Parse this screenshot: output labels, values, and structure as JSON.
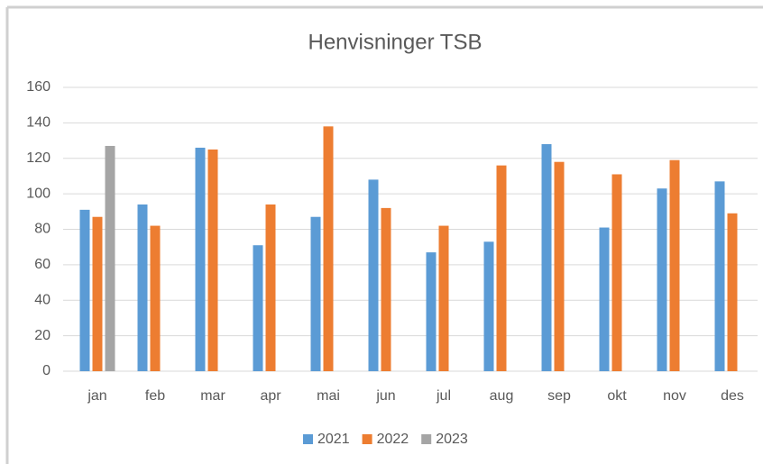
{
  "chart_data": {
    "type": "bar",
    "title": "Henvisninger TSB",
    "categories": [
      "jan",
      "feb",
      "mar",
      "apr",
      "mai",
      "jun",
      "jul",
      "aug",
      "sep",
      "okt",
      "nov",
      "des"
    ],
    "series": [
      {
        "name": "2021",
        "color": "#5b9bd5",
        "values": [
          91,
          94,
          126,
          71,
          87,
          108,
          67,
          73,
          128,
          81,
          103,
          107
        ]
      },
      {
        "name": "2022",
        "color": "#ed7d31",
        "values": [
          87,
          82,
          125,
          94,
          138,
          92,
          82,
          116,
          118,
          111,
          119,
          89
        ]
      },
      {
        "name": "2023",
        "color": "#a5a5a5",
        "values": [
          127,
          null,
          null,
          null,
          null,
          null,
          null,
          null,
          null,
          null,
          null,
          null
        ]
      }
    ],
    "ylim": [
      0,
      160
    ],
    "yticks": [
      0,
      20,
      40,
      60,
      80,
      100,
      120,
      140,
      160
    ],
    "grid": true,
    "legend": "bottom"
  }
}
